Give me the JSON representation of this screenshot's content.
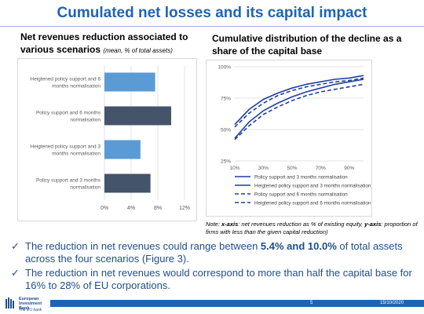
{
  "slide": {
    "title": "Cumulated net losses and its capital impact",
    "page_number": "5",
    "date": "15/10/2020"
  },
  "left_heading": {
    "main": "Net revenues reduction associated to various scenarios",
    "sub": "(mean, % of total assets)"
  },
  "right_heading": "Cumulative distribution of the decline as a share of the capital base",
  "note": {
    "prefix": "Note: ",
    "xlabel_key": "x-axis",
    "xlabel_text": ": net revenues reduction as % of existing equity, ",
    "ylabel_key": "y-axis",
    "ylabel_text": ": proportion of firms with less than the given capital reduction)"
  },
  "bullets": [
    {
      "before": "The reduction in net revenues could range between ",
      "bold": "5.4% and 10.0%",
      "after": " of total assets across the four scenarios (Figure 3)."
    },
    {
      "before": "The reduction in net revenues would correspond to more than half the capital base for 16% to 28% of EU corporations.",
      "bold": "",
      "after": ""
    }
  ],
  "logo": {
    "line1": "European",
    "line2": "Investment",
    "line3": "Bank",
    "tagline": "The EU bank"
  },
  "chart_data": [
    {
      "type": "bar",
      "orientation": "horizontal",
      "categories": [
        "Heigtened policy support and 6 months normalisation",
        "Policy support and 6 months normalisation",
        "Heigtened policy support and 3 months normalisation",
        "Policy support and 3 months normalisation"
      ],
      "values": [
        7.6,
        10.0,
        5.4,
        6.9
      ],
      "colors": [
        "#5b9bd5",
        "#44546a",
        "#5b9bd5",
        "#44546a"
      ],
      "xlim": [
        0,
        12
      ],
      "ticks": [
        "0%",
        "4%",
        "8%",
        "12%"
      ],
      "grid": true
    },
    {
      "type": "line",
      "x": [
        10,
        20,
        30,
        40,
        50,
        60,
        70,
        80,
        90,
        100
      ],
      "xticks": [
        "10%",
        "30%",
        "50%",
        "70%",
        "90%"
      ],
      "yticks": [
        "25%",
        "50%",
        "75%",
        "100%"
      ],
      "ylim": [
        25,
        100
      ],
      "grid": true,
      "legend_position": "bottom",
      "series": [
        {
          "name": "Policy support and 3 months normalisation",
          "style": "solid",
          "values": [
            54,
            66,
            74,
            79,
            83,
            86,
            88,
            90,
            91,
            93
          ]
        },
        {
          "name": "Heigtened policy support and 3 months normalisation",
          "style": "solid",
          "values": [
            43,
            56,
            65,
            71,
            76,
            80,
            83,
            86,
            88,
            90
          ]
        },
        {
          "name": "Policy support and 6 months normalisation",
          "style": "dashed",
          "values": [
            52,
            63,
            71,
            77,
            81,
            84,
            86,
            88,
            89,
            91
          ]
        },
        {
          "name": "Heigtened policy support and 6 months normalisation",
          "style": "dashed",
          "values": [
            42,
            53,
            62,
            68,
            73,
            77,
            80,
            82,
            84,
            86
          ]
        }
      ]
    }
  ]
}
